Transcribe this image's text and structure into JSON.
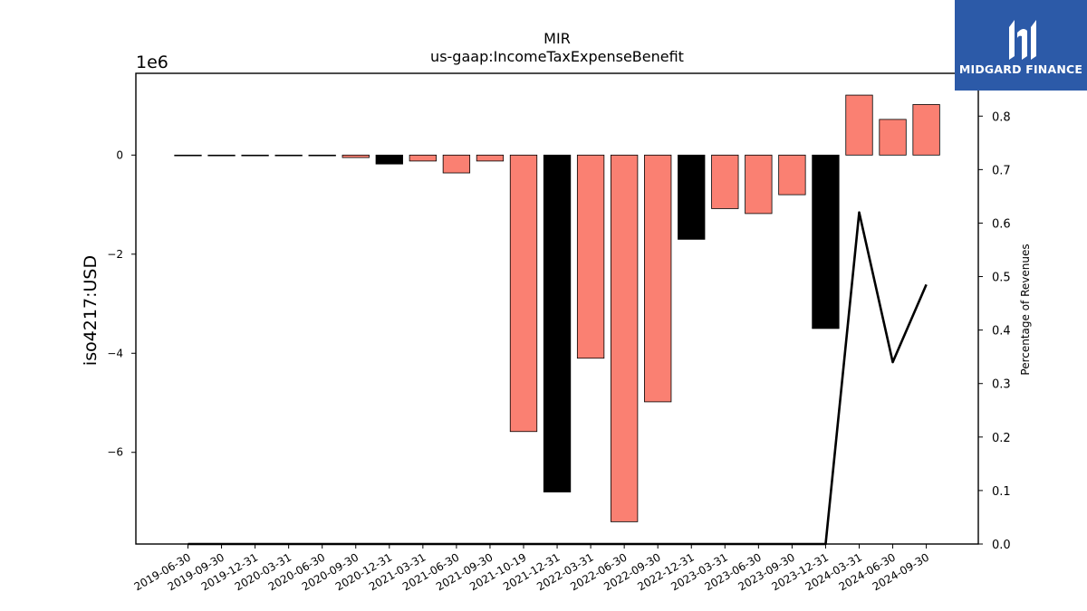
{
  "chart_data": {
    "type": "bar",
    "title": "MIR",
    "subtitle": "us-gaap:IncomeTaxExpenseBenefit",
    "ylabel": "iso4217:USD",
    "y_offset_label": "1e6",
    "y2label": "Percentage of Revenues",
    "ylim": [
      -7.85,
      1.65
    ],
    "y_ticks": [
      0,
      -2,
      -4,
      -6
    ],
    "y_tick_labels": [
      "0",
      "−2",
      "−4",
      "−6"
    ],
    "y2lim": [
      0.0,
      0.88
    ],
    "y2_ticks": [
      0.0,
      0.1,
      0.2,
      0.3,
      0.4,
      0.5,
      0.6,
      0.7,
      0.8
    ],
    "y2_tick_labels": [
      "0.0",
      "0.1",
      "0.2",
      "0.3",
      "0.4",
      "0.5",
      "0.6",
      "0.7",
      "0.8"
    ],
    "categories": [
      "2019-06-30",
      "2019-09-30",
      "2019-12-31",
      "2020-03-31",
      "2020-06-30",
      "2020-09-30",
      "2020-12-31",
      "2021-03-31",
      "2021-06-30",
      "2021-09-30",
      "2021-10-19",
      "2021-12-31",
      "2022-03-31",
      "2022-06-30",
      "2022-09-30",
      "2022-12-31",
      "2023-03-31",
      "2023-06-30",
      "2023-09-30",
      "2023-12-31",
      "2024-03-31",
      "2024-06-30",
      "2024-09-30"
    ],
    "values": [
      0,
      0,
      0,
      0,
      0,
      -0.05,
      -0.18,
      -0.12,
      -0.36,
      -0.12,
      -5.58,
      -6.8,
      -4.1,
      -7.4,
      -4.98,
      -1.7,
      -1.08,
      -1.18,
      -0.8,
      -3.5,
      1.21,
      0.72,
      1.02
    ],
    "bar_colors": [
      "#fa8072",
      "#fa8072",
      "#fa8072",
      "#fa8072",
      "#fa8072",
      "#fa8072",
      "#000000",
      "#fa8072",
      "#fa8072",
      "#fa8072",
      "#fa8072",
      "#000000",
      "#fa8072",
      "#fa8072",
      "#fa8072",
      "#000000",
      "#fa8072",
      "#fa8072",
      "#fa8072",
      "#000000",
      "#fa8072",
      "#fa8072",
      "#fa8072"
    ],
    "line_series": {
      "x_indices": [
        0,
        1,
        2,
        3,
        4,
        5,
        6,
        19,
        20,
        21,
        22
      ],
      "values": [
        0.0,
        0.0,
        0.0,
        0.0,
        0.0,
        0.0,
        0.0,
        0.0,
        0.62,
        0.34,
        0.485
      ],
      "color": "#000000"
    }
  },
  "logo": {
    "name": "MIDGARD FINANCE",
    "color": "#2c5aa8"
  }
}
